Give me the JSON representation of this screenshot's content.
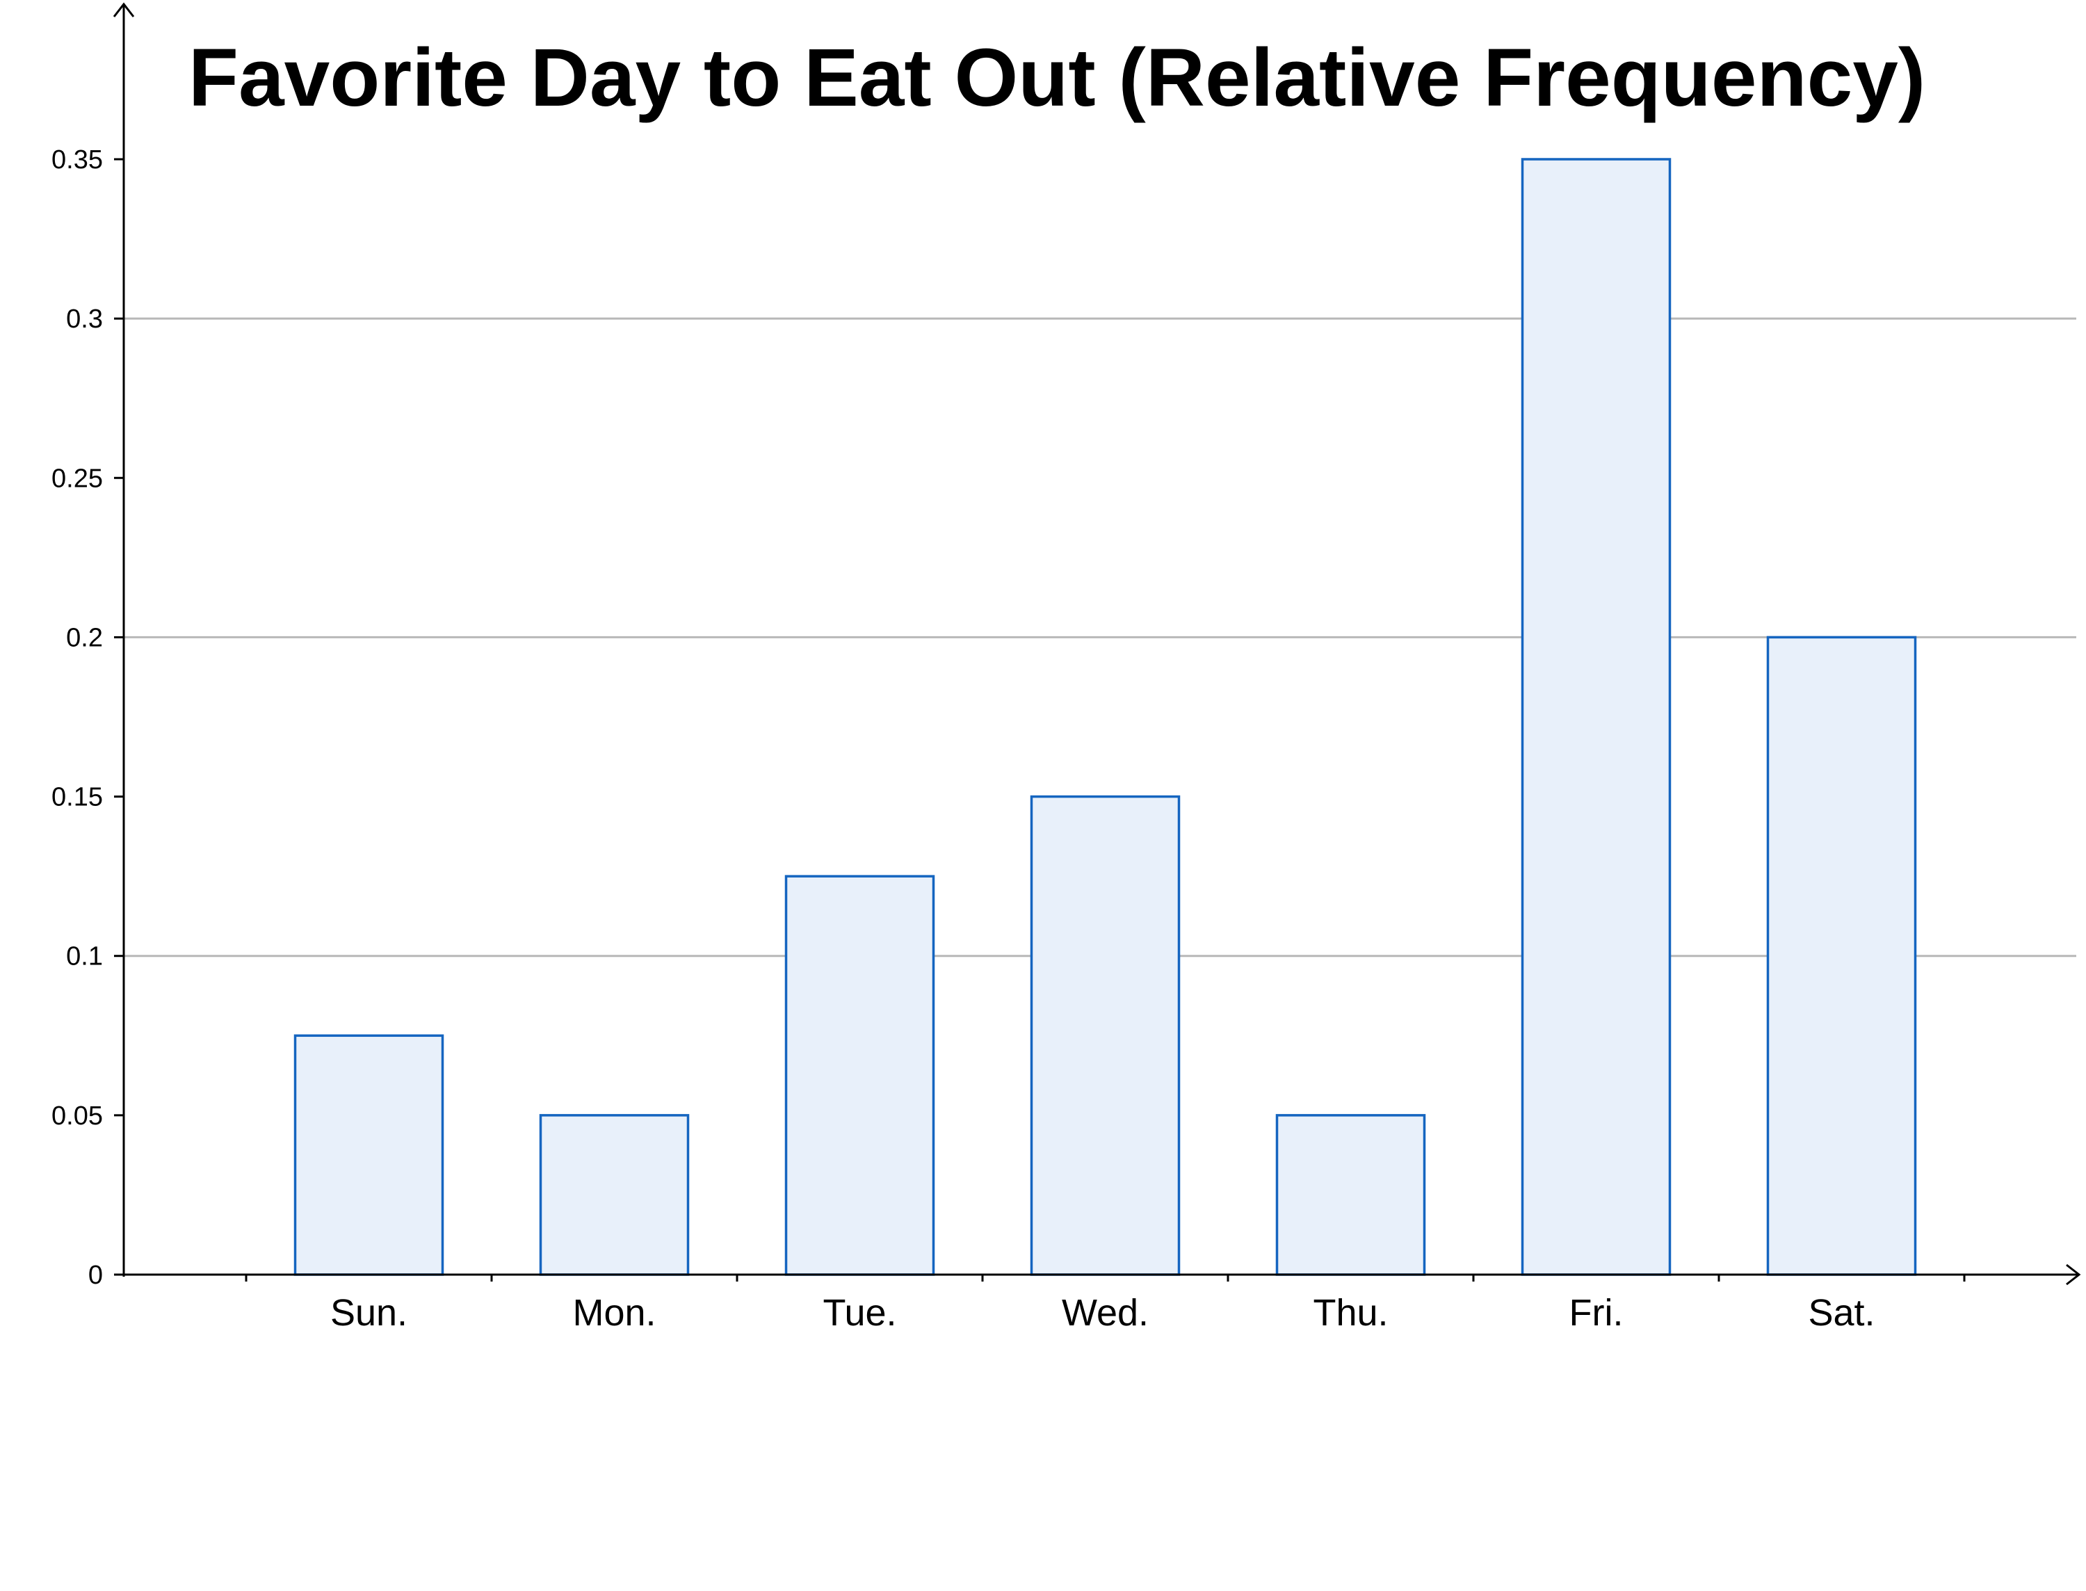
{
  "chart_data": {
    "type": "bar",
    "title": "Favorite Day to Eat Out (Relative Frequency)",
    "xlabel": "",
    "ylabel": "",
    "categories": [
      "Sun.",
      "Mon.",
      "Tue.",
      "Wed.",
      "Thu.",
      "Fri.",
      "Sat."
    ],
    "values": [
      0.075,
      0.05,
      0.125,
      0.15,
      0.05,
      0.35,
      0.2
    ],
    "ylim": [
      0,
      0.4
    ],
    "yticks": [
      "0",
      "0.05",
      "0.1",
      "0.15",
      "0.2",
      "0.25",
      "0.3",
      "0.35"
    ],
    "ytick_values": [
      0,
      0.05,
      0.1,
      0.15,
      0.2,
      0.25,
      0.3,
      0.35
    ],
    "gridlines_at": [
      0.1,
      0.2,
      0.3
    ],
    "grid": true,
    "legend": "none",
    "colors": {
      "bar_fill": "#e8f0fa",
      "bar_stroke": "#1565c0",
      "grid": "#b8b8b8",
      "axis": "#000000"
    }
  }
}
